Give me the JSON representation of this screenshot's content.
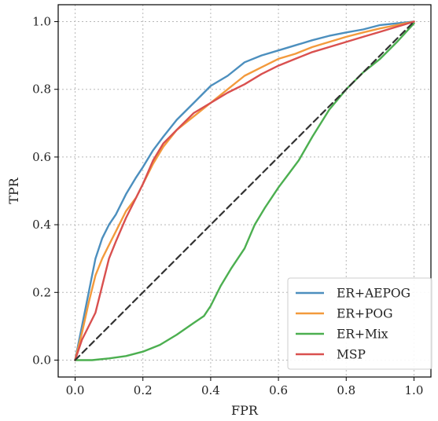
{
  "chart_data": {
    "type": "line",
    "title": "",
    "xlabel": "FPR",
    "ylabel": "TPR",
    "xlim": [
      -0.05,
      1.05
    ],
    "ylim": [
      -0.05,
      1.05
    ],
    "xticks": [
      0.0,
      0.2,
      0.4,
      0.6,
      0.8,
      1.0
    ],
    "yticks": [
      0.0,
      0.2,
      0.4,
      0.6,
      0.8,
      1.0
    ],
    "xtick_labels": [
      "0.0",
      "0.2",
      "0.4",
      "0.6",
      "0.8",
      "1.0"
    ],
    "ytick_labels": [
      "0.0",
      "0.2",
      "0.4",
      "0.6",
      "0.8",
      "1.0"
    ],
    "grid": true,
    "legend_position": "lower-right",
    "series": [
      {
        "name": "ER+AEPOG",
        "color": "#4c8fbe",
        "x": [
          0.0,
          0.02,
          0.04,
          0.06,
          0.08,
          0.1,
          0.12,
          0.15,
          0.18,
          0.2,
          0.23,
          0.26,
          0.3,
          0.35,
          0.4,
          0.45,
          0.5,
          0.55,
          0.6,
          0.65,
          0.7,
          0.75,
          0.8,
          0.85,
          0.9,
          0.95,
          1.0
        ],
        "y": [
          0.0,
          0.1,
          0.2,
          0.3,
          0.36,
          0.4,
          0.43,
          0.49,
          0.54,
          0.57,
          0.62,
          0.66,
          0.71,
          0.76,
          0.81,
          0.84,
          0.88,
          0.9,
          0.915,
          0.93,
          0.945,
          0.958,
          0.968,
          0.977,
          0.99,
          0.995,
          1.0
        ]
      },
      {
        "name": "ER+POG",
        "color": "#f39a3c",
        "x": [
          0.0,
          0.02,
          0.04,
          0.06,
          0.08,
          0.1,
          0.12,
          0.15,
          0.18,
          0.2,
          0.23,
          0.26,
          0.3,
          0.35,
          0.4,
          0.45,
          0.5,
          0.55,
          0.6,
          0.65,
          0.7,
          0.75,
          0.8,
          0.85,
          0.9,
          0.95,
          1.0
        ],
        "y": [
          0.0,
          0.08,
          0.17,
          0.25,
          0.3,
          0.34,
          0.38,
          0.44,
          0.48,
          0.52,
          0.58,
          0.63,
          0.68,
          0.72,
          0.76,
          0.8,
          0.84,
          0.865,
          0.89,
          0.905,
          0.925,
          0.94,
          0.955,
          0.968,
          0.98,
          0.99,
          1.0
        ]
      },
      {
        "name": "ER+Mix",
        "color": "#4caf50",
        "x": [
          0.0,
          0.05,
          0.1,
          0.15,
          0.2,
          0.25,
          0.3,
          0.35,
          0.38,
          0.4,
          0.43,
          0.46,
          0.5,
          0.53,
          0.56,
          0.6,
          0.63,
          0.66,
          0.7,
          0.75,
          0.8,
          0.85,
          0.9,
          0.95,
          1.0
        ],
        "y": [
          0.0,
          0.0,
          0.005,
          0.012,
          0.025,
          0.045,
          0.075,
          0.11,
          0.13,
          0.16,
          0.22,
          0.27,
          0.33,
          0.4,
          0.45,
          0.51,
          0.55,
          0.59,
          0.66,
          0.74,
          0.8,
          0.85,
          0.89,
          0.94,
          0.995
        ]
      },
      {
        "name": "MSP",
        "color": "#d9504f",
        "x": [
          0.0,
          0.02,
          0.04,
          0.06,
          0.08,
          0.1,
          0.12,
          0.15,
          0.18,
          0.2,
          0.23,
          0.26,
          0.3,
          0.35,
          0.4,
          0.45,
          0.5,
          0.55,
          0.6,
          0.65,
          0.7,
          0.75,
          0.8,
          0.85,
          0.9,
          0.95,
          1.0
        ],
        "y": [
          0.0,
          0.06,
          0.1,
          0.14,
          0.22,
          0.3,
          0.35,
          0.42,
          0.48,
          0.52,
          0.59,
          0.64,
          0.68,
          0.73,
          0.76,
          0.79,
          0.815,
          0.845,
          0.87,
          0.89,
          0.91,
          0.925,
          0.94,
          0.955,
          0.97,
          0.985,
          1.0
        ]
      },
      {
        "name": "",
        "color": "#333333",
        "dashed": true,
        "x": [
          0.0,
          1.0
        ],
        "y": [
          0.0,
          1.0
        ]
      }
    ]
  }
}
